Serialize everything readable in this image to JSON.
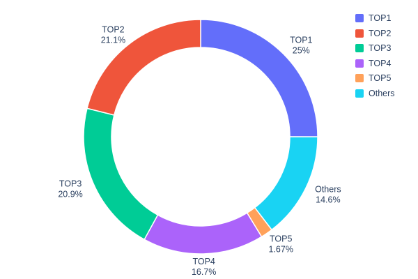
{
  "chart_data": {
    "type": "pie",
    "donut": true,
    "hole_ratio": 0.76,
    "title": "",
    "categories": [
      "TOP1",
      "TOP2",
      "TOP3",
      "TOP4",
      "TOP5",
      "Others"
    ],
    "values": [
      25,
      21.1,
      20.9,
      16.7,
      1.67,
      14.6
    ],
    "percent_labels": [
      "25%",
      "21.1%",
      "20.9%",
      "16.7%",
      "1.67%",
      "14.6%"
    ],
    "colors": [
      "#636EFA",
      "#EF553B",
      "#00CC96",
      "#AB63FA",
      "#FFA15A",
      "#19D3F3"
    ],
    "draw_order_clockwise_from_top": [
      "TOP1",
      "Others",
      "TOP5",
      "TOP4",
      "TOP3",
      "TOP2"
    ],
    "start_angle_deg": 0,
    "legend": {
      "position": "top-right",
      "entries": [
        "TOP1",
        "TOP2",
        "TOP3",
        "TOP4",
        "TOP5",
        "Others"
      ]
    },
    "text_color": "#2a3f5f",
    "background": "#ffffff"
  }
}
